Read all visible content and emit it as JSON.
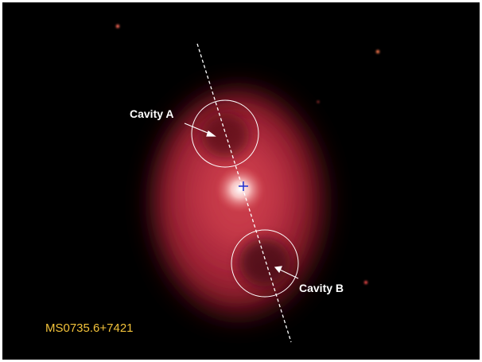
{
  "annotations": {
    "cavity_a": "Cavity A",
    "cavity_b": "Cavity B",
    "object_name": "MS0735.6+7421"
  }
}
